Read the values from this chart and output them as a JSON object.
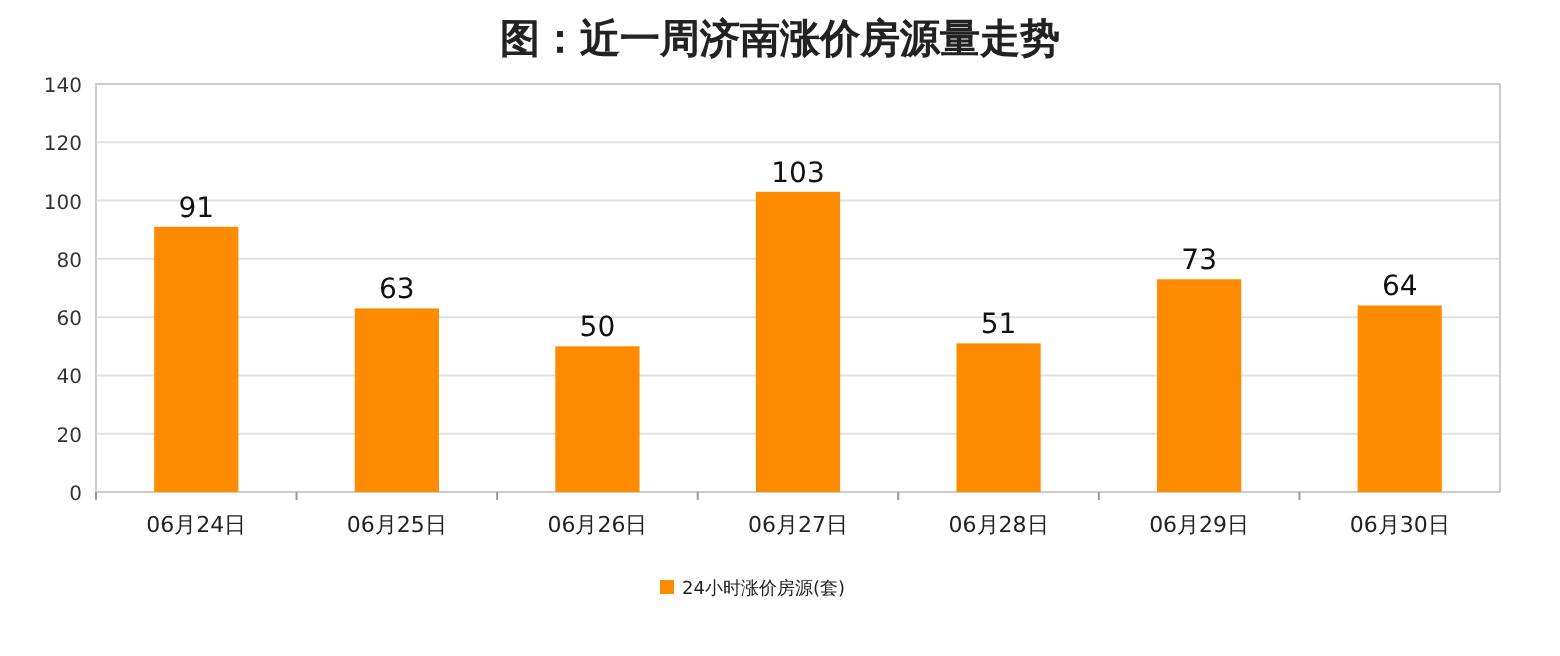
{
  "chart_data": {
    "type": "bar",
    "title": "图：近一周济南涨价房源量走势",
    "categories": [
      "06月24日",
      "06月25日",
      "06月26日",
      "06月27日",
      "06月28日",
      "06月29日",
      "06月30日"
    ],
    "series": [
      {
        "name": "24小时涨价房源(套)",
        "color": "#ff8c00",
        "values": [
          91,
          63,
          50,
          103,
          51,
          73,
          64
        ]
      }
    ],
    "ylim": [
      0,
      140
    ],
    "yticks": [
      0,
      20,
      40,
      60,
      80,
      100,
      120,
      140
    ],
    "grid": "y",
    "legend": "bottom",
    "data_labels": true
  }
}
